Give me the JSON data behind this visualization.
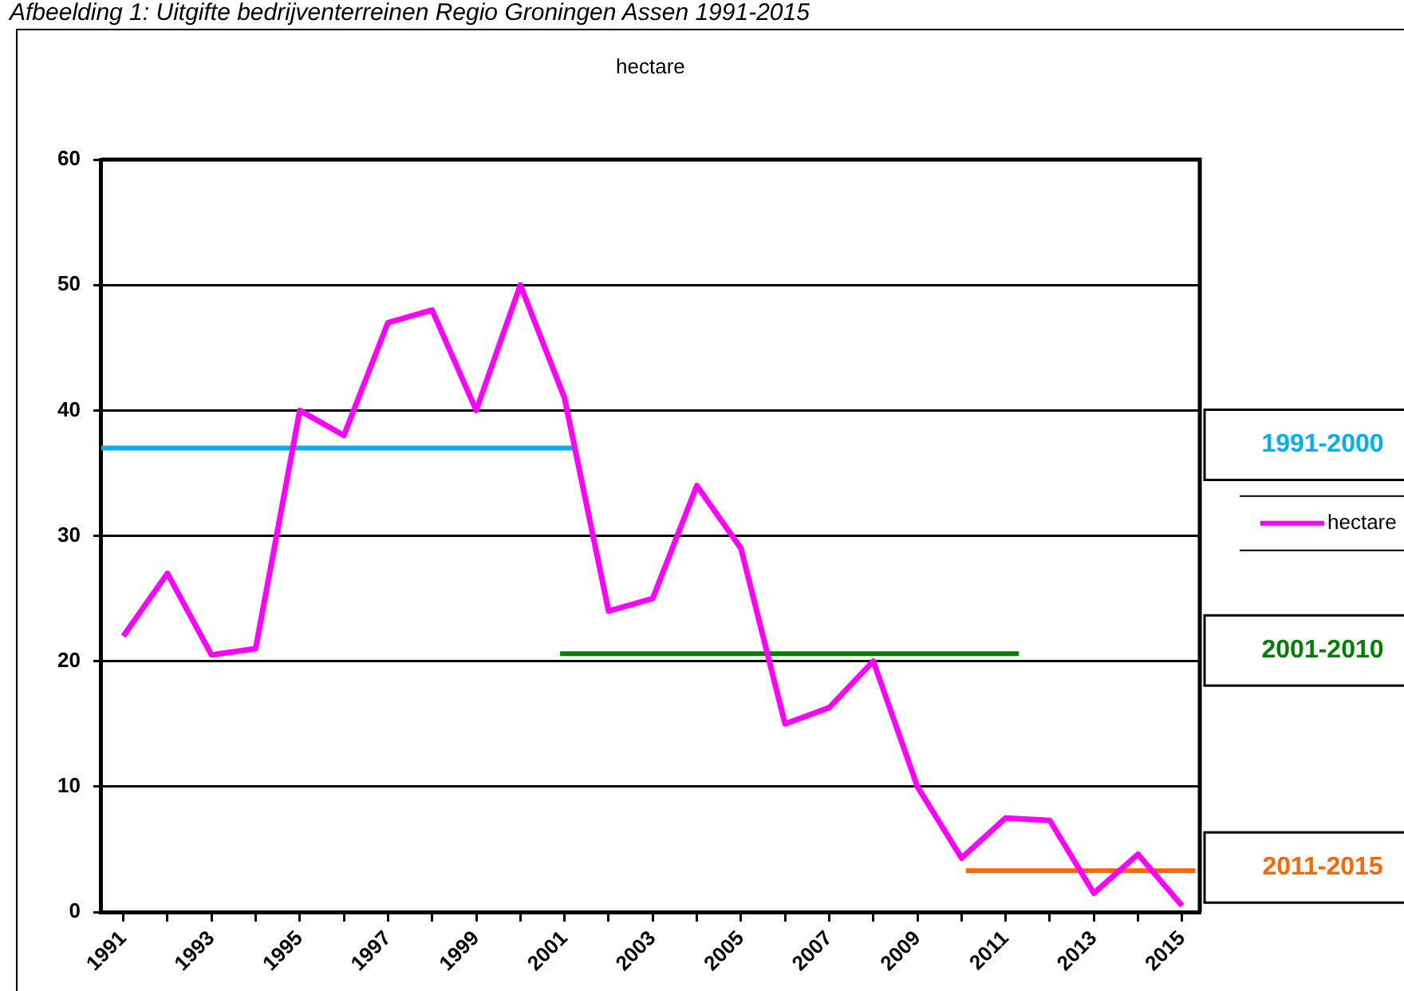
{
  "chart_data": {
    "type": "line",
    "title": "hectare",
    "annotations": [
      "Afbeelding 1: Uitgifte bedrijventerreinen Regio Groningen Assen 1991-2015"
    ],
    "x": [
      1991,
      1992,
      1993,
      1994,
      1995,
      1996,
      1997,
      1998,
      1999,
      2000,
      2001,
      2002,
      2003,
      2004,
      2005,
      2006,
      2007,
      2008,
      2009,
      2010,
      2011,
      2012,
      2013,
      2014,
      2015
    ],
    "xlim": [
      1990.5,
      2015.4
    ],
    "xticks": [
      1991,
      {
        "value": 1992,
        "label": null
      },
      1993,
      {
        "value": 1994,
        "label": null
      },
      1995,
      {
        "value": 1996,
        "label": null
      },
      1997,
      {
        "value": 1998,
        "label": null
      },
      1999,
      {
        "value": 2000,
        "label": null
      },
      2001,
      {
        "value": 2002,
        "label": null
      },
      2003,
      {
        "value": 2004,
        "label": null
      },
      2005,
      {
        "value": 2006,
        "label": null
      },
      2007,
      {
        "value": 2008,
        "label": null
      },
      2009,
      {
        "value": 2010,
        "label": null
      },
      2011,
      {
        "value": 2012,
        "label": null
      },
      2013,
      {
        "value": 2014,
        "label": null
      },
      2015
    ],
    "ylim": [
      0,
      60
    ],
    "yticks": [
      0,
      10,
      20,
      30,
      40,
      50,
      60
    ],
    "grid": "y",
    "legend": "right",
    "marker": "none",
    "series": [
      {
        "name": "hectare",
        "color": "#ff00ff",
        "values": [
          22,
          27,
          20.5,
          21,
          40,
          38,
          47,
          48,
          40,
          50,
          41,
          24,
          25,
          34,
          29,
          15,
          16.3,
          20,
          10,
          4.3,
          7.5,
          7.3,
          1.5,
          4.6,
          0.5
        ]
      },
      {
        "name": "1991-2000",
        "color": "#00b0f0",
        "x": [
          1990.5,
          2001.2
        ],
        "values": [
          37,
          37
        ]
      },
      {
        "name": "2001-2010",
        "color": "#008000",
        "x": [
          2000.9,
          2011.3
        ],
        "values": [
          20.6,
          20.6
        ]
      },
      {
        "name": "2011-2015",
        "color": "#ff6600",
        "x": [
          2010.1,
          2015.3
        ],
        "values": [
          3.3,
          3.3
        ]
      }
    ]
  }
}
